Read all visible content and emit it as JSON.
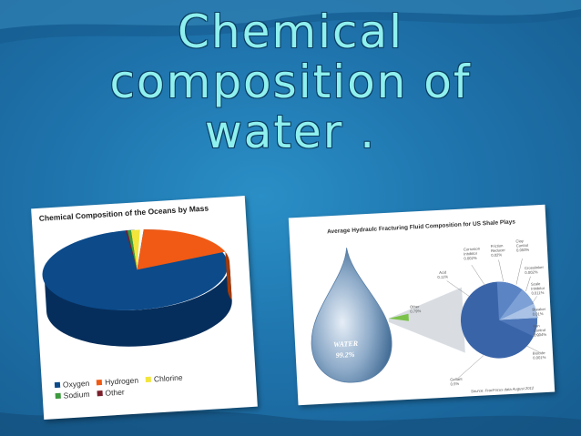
{
  "title": {
    "lines": [
      "Chemical",
      "composition of",
      "water ."
    ]
  },
  "colors": {
    "background": "#1f74ad",
    "title_text": "#8ff0ee",
    "oxygen": "#0c4a8a",
    "hydrogen": "#f05a14",
    "chlorine": "#f2e53c",
    "sodium": "#3d9a3d",
    "other": "#7a1f2b",
    "fluid_pie": "#3a64a8"
  },
  "ocean_chart": {
    "title": "Chemical Composition of the Oceans by Mass",
    "legend_row1": [
      {
        "label": "Oxygen",
        "color": "#0c4a8a"
      },
      {
        "label": "Hydrogen",
        "color": "#f05a14"
      },
      {
        "label": "Chlorine",
        "color": "#f2e53c"
      }
    ],
    "legend_row2": [
      {
        "label": "Sodium",
        "color": "#3d9a3d"
      },
      {
        "label": "Other",
        "color": "#7a1f2b"
      }
    ]
  },
  "fluid_chart": {
    "title": "Average Hydraulc Fracturing Fluid Composition for US Shale Plays",
    "water_label": "WATER",
    "water_value": "99.2%",
    "labels": {
      "acid": [
        "Acid",
        "0.11%"
      ],
      "corrosion": [
        "Corrosion",
        "Inhibitor",
        "0.002%"
      ],
      "friction": [
        "Friction",
        "Reducer",
        "0.02%"
      ],
      "clay": [
        "Clay",
        "Control",
        "0.050%"
      ],
      "crosslinker": [
        "Crosslinker",
        "0.002%"
      ],
      "scale": [
        "Scale",
        "Inhibitor",
        "0.011%"
      ],
      "breaker": [
        "Breaker",
        "0.01%"
      ],
      "iron": [
        "Iron",
        "Control",
        "0.004%"
      ],
      "biocide": [
        "Biocide",
        "0.001%"
      ],
      "other": [
        "Other",
        "0.79%"
      ],
      "gellant": [
        "Gellant",
        "0.5%"
      ]
    },
    "source": "Source: FracFocus data August 2012"
  },
  "chart_data": [
    {
      "type": "pie",
      "title": "Chemical Composition of the Oceans by Mass",
      "categories": [
        "Oxygen",
        "Hydrogen",
        "Chlorine",
        "Sodium",
        "Other"
      ],
      "values": [
        85.8,
        10.8,
        1.9,
        1.1,
        0.4
      ],
      "legend": "bottom"
    },
    {
      "type": "pie",
      "title": "Average Hydraulc Fracturing Fluid Composition for US Shale Plays",
      "categories": [
        "Water",
        "Other"
      ],
      "values": [
        99.2,
        0.79
      ]
    }
  ]
}
